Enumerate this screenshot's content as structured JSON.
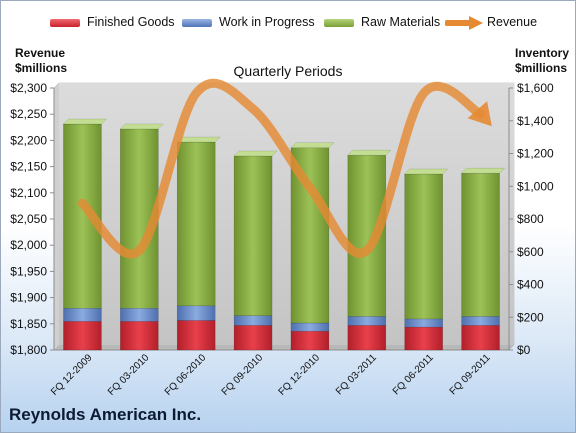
{
  "chart_data": {
    "type": "bar",
    "title": "Quarterly Periods",
    "company": "Reynolds American Inc.",
    "categories": [
      "FQ 12-2009",
      "FQ 03-2010",
      "FQ 06-2010",
      "FQ 09-2010",
      "FQ 12-2010",
      "FQ 03-2011",
      "FQ 06-2011",
      "FQ 09-2011"
    ],
    "stacked": true,
    "series": [
      {
        "name": "Finished Goods",
        "axis": "right",
        "color": "#d9333f",
        "values": [
          175,
          175,
          180,
          150,
          115,
          150,
          140,
          150
        ]
      },
      {
        "name": "Work in Progress",
        "axis": "right",
        "color": "#6b8fd0",
        "values": [
          80,
          80,
          90,
          60,
          50,
          55,
          50,
          55
        ]
      },
      {
        "name": "Raw Materials",
        "axis": "right",
        "color": "#8db34a",
        "values": [
          1125,
          1095,
          1000,
          975,
          1070,
          985,
          885,
          875
        ]
      },
      {
        "name": "Revenue",
        "axis": "left",
        "type": "line",
        "color": "#e58a33",
        "values": [
          2080,
          1990,
          2290,
          2260,
          2110,
          1990,
          2290,
          2250
        ]
      }
    ],
    "left_axis": {
      "label": "Revenue\n$millions",
      "ylim": [
        1800,
        2300
      ],
      "ticks": [
        "$1,800",
        "$1,850",
        "$1,900",
        "$1,950",
        "$2,000",
        "$2,050",
        "$2,100",
        "$2,150",
        "$2,200",
        "$2,250",
        "$2,300"
      ]
    },
    "right_axis": {
      "label": "Inventory\n$millions",
      "ylim": [
        0,
        1600
      ],
      "ticks": [
        "$0",
        "$200",
        "$400",
        "$600",
        "$800",
        "$1,000",
        "$1,200",
        "$1,400",
        "$1,600"
      ]
    },
    "legend_position": "top",
    "grid": false
  }
}
